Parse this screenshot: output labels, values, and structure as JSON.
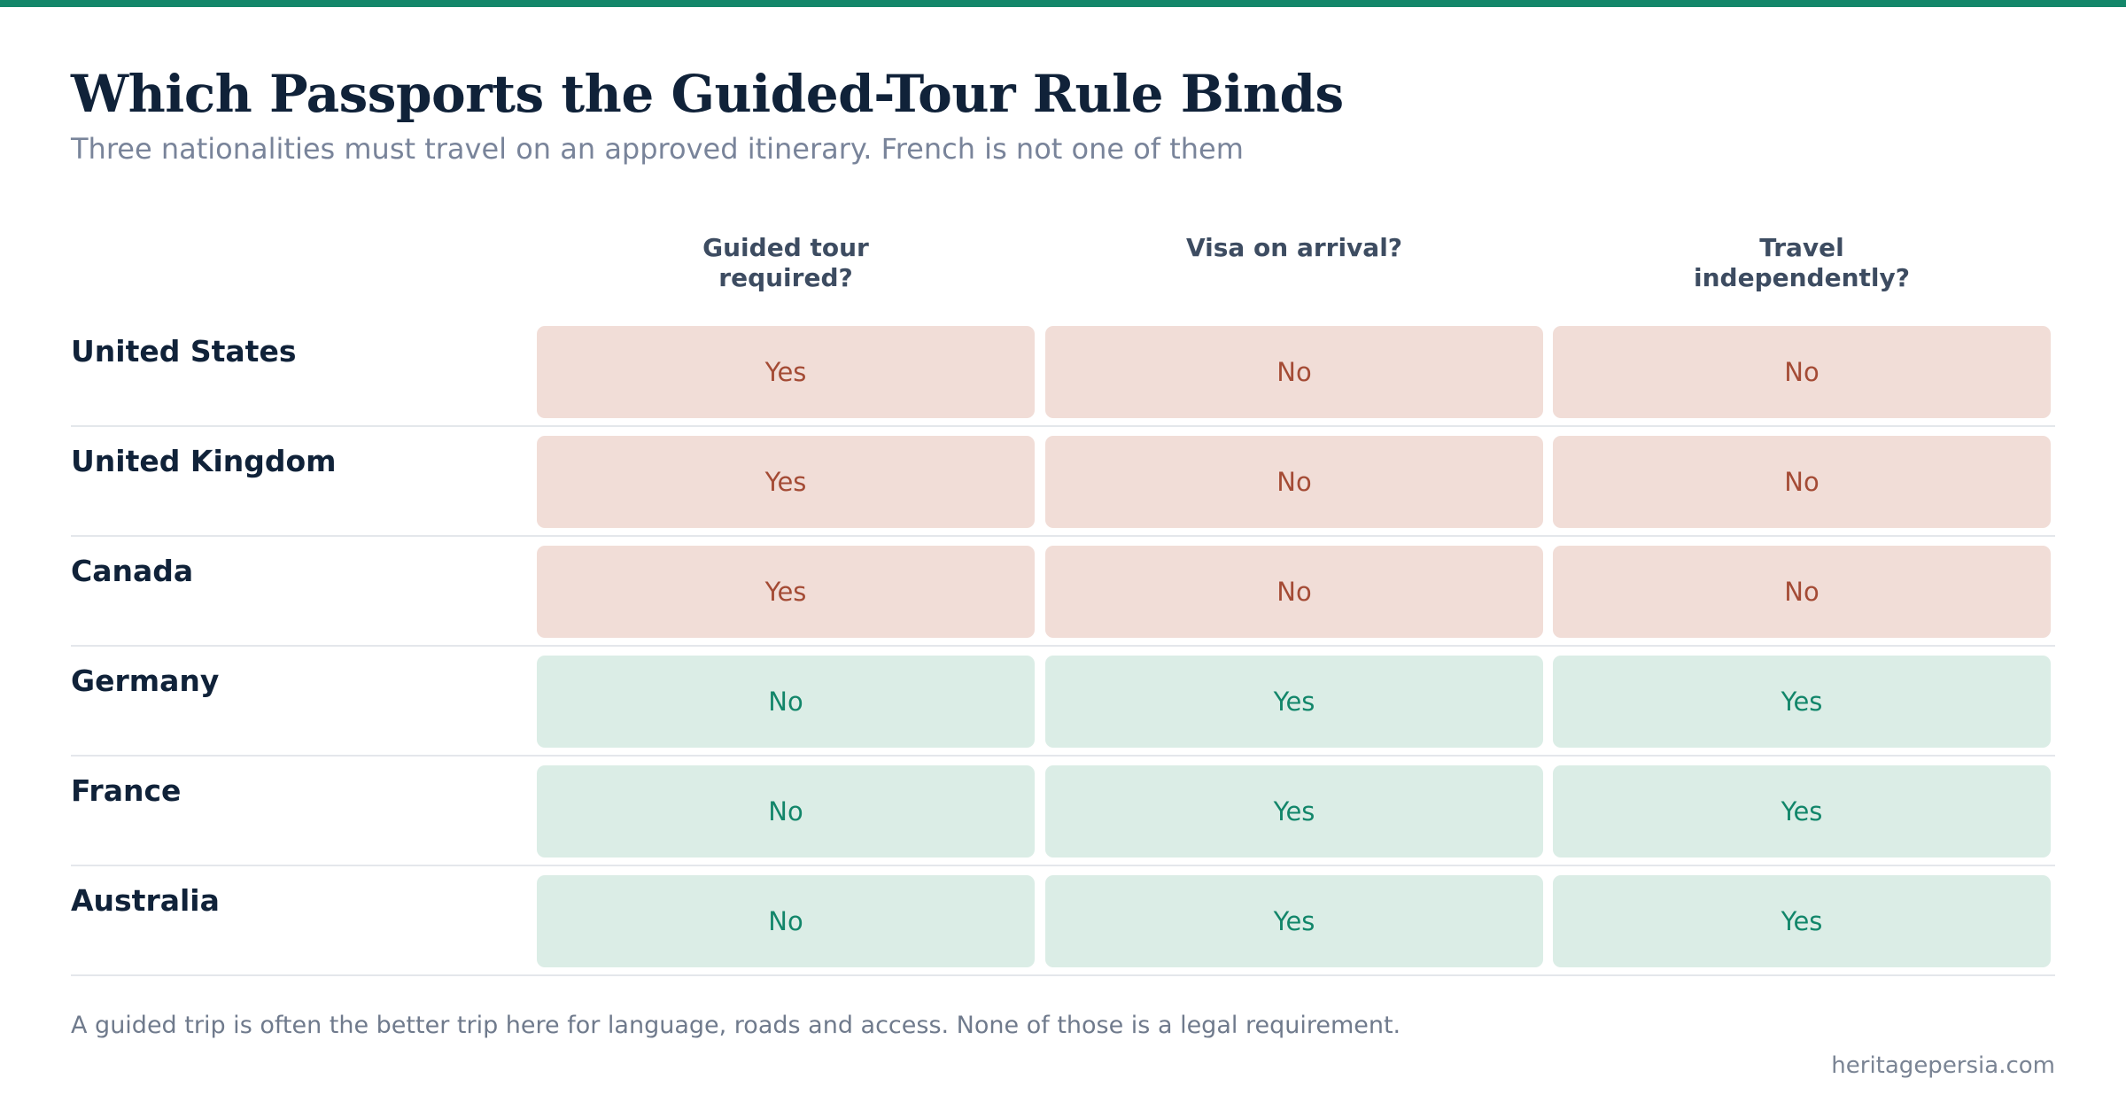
{
  "page": {
    "title": "Which Passports the Guided-Tour Rule Binds",
    "subtitle": "Three nationalities must travel on an approved itinerary. French is not one of them"
  },
  "colors": {
    "accent": "#14876a",
    "negative_bg": "#f1ddd7",
    "negative_text": "#a44b35",
    "positive_bg": "#dbede6",
    "positive_text": "#12866a"
  },
  "table": {
    "columns": [
      {
        "label": "Guided tour\nrequired?"
      },
      {
        "label": "Visa on arrival?"
      },
      {
        "label": "Travel\nindependently?"
      }
    ],
    "rows": [
      {
        "country": "United States",
        "cells": [
          "Yes",
          "No",
          "No"
        ],
        "status": "neg"
      },
      {
        "country": "United Kingdom",
        "cells": [
          "Yes",
          "No",
          "No"
        ],
        "status": "neg"
      },
      {
        "country": "Canada",
        "cells": [
          "Yes",
          "No",
          "No"
        ],
        "status": "neg"
      },
      {
        "country": "Germany",
        "cells": [
          "No",
          "Yes",
          "Yes"
        ],
        "status": "pos"
      },
      {
        "country": "France",
        "cells": [
          "No",
          "Yes",
          "Yes"
        ],
        "status": "pos"
      },
      {
        "country": "Australia",
        "cells": [
          "No",
          "Yes",
          "Yes"
        ],
        "status": "pos"
      }
    ]
  },
  "footer": {
    "note": "A guided trip is often the better trip here for language, roads and access. None of those is a legal requirement.",
    "source": "heritagepersia.com"
  }
}
